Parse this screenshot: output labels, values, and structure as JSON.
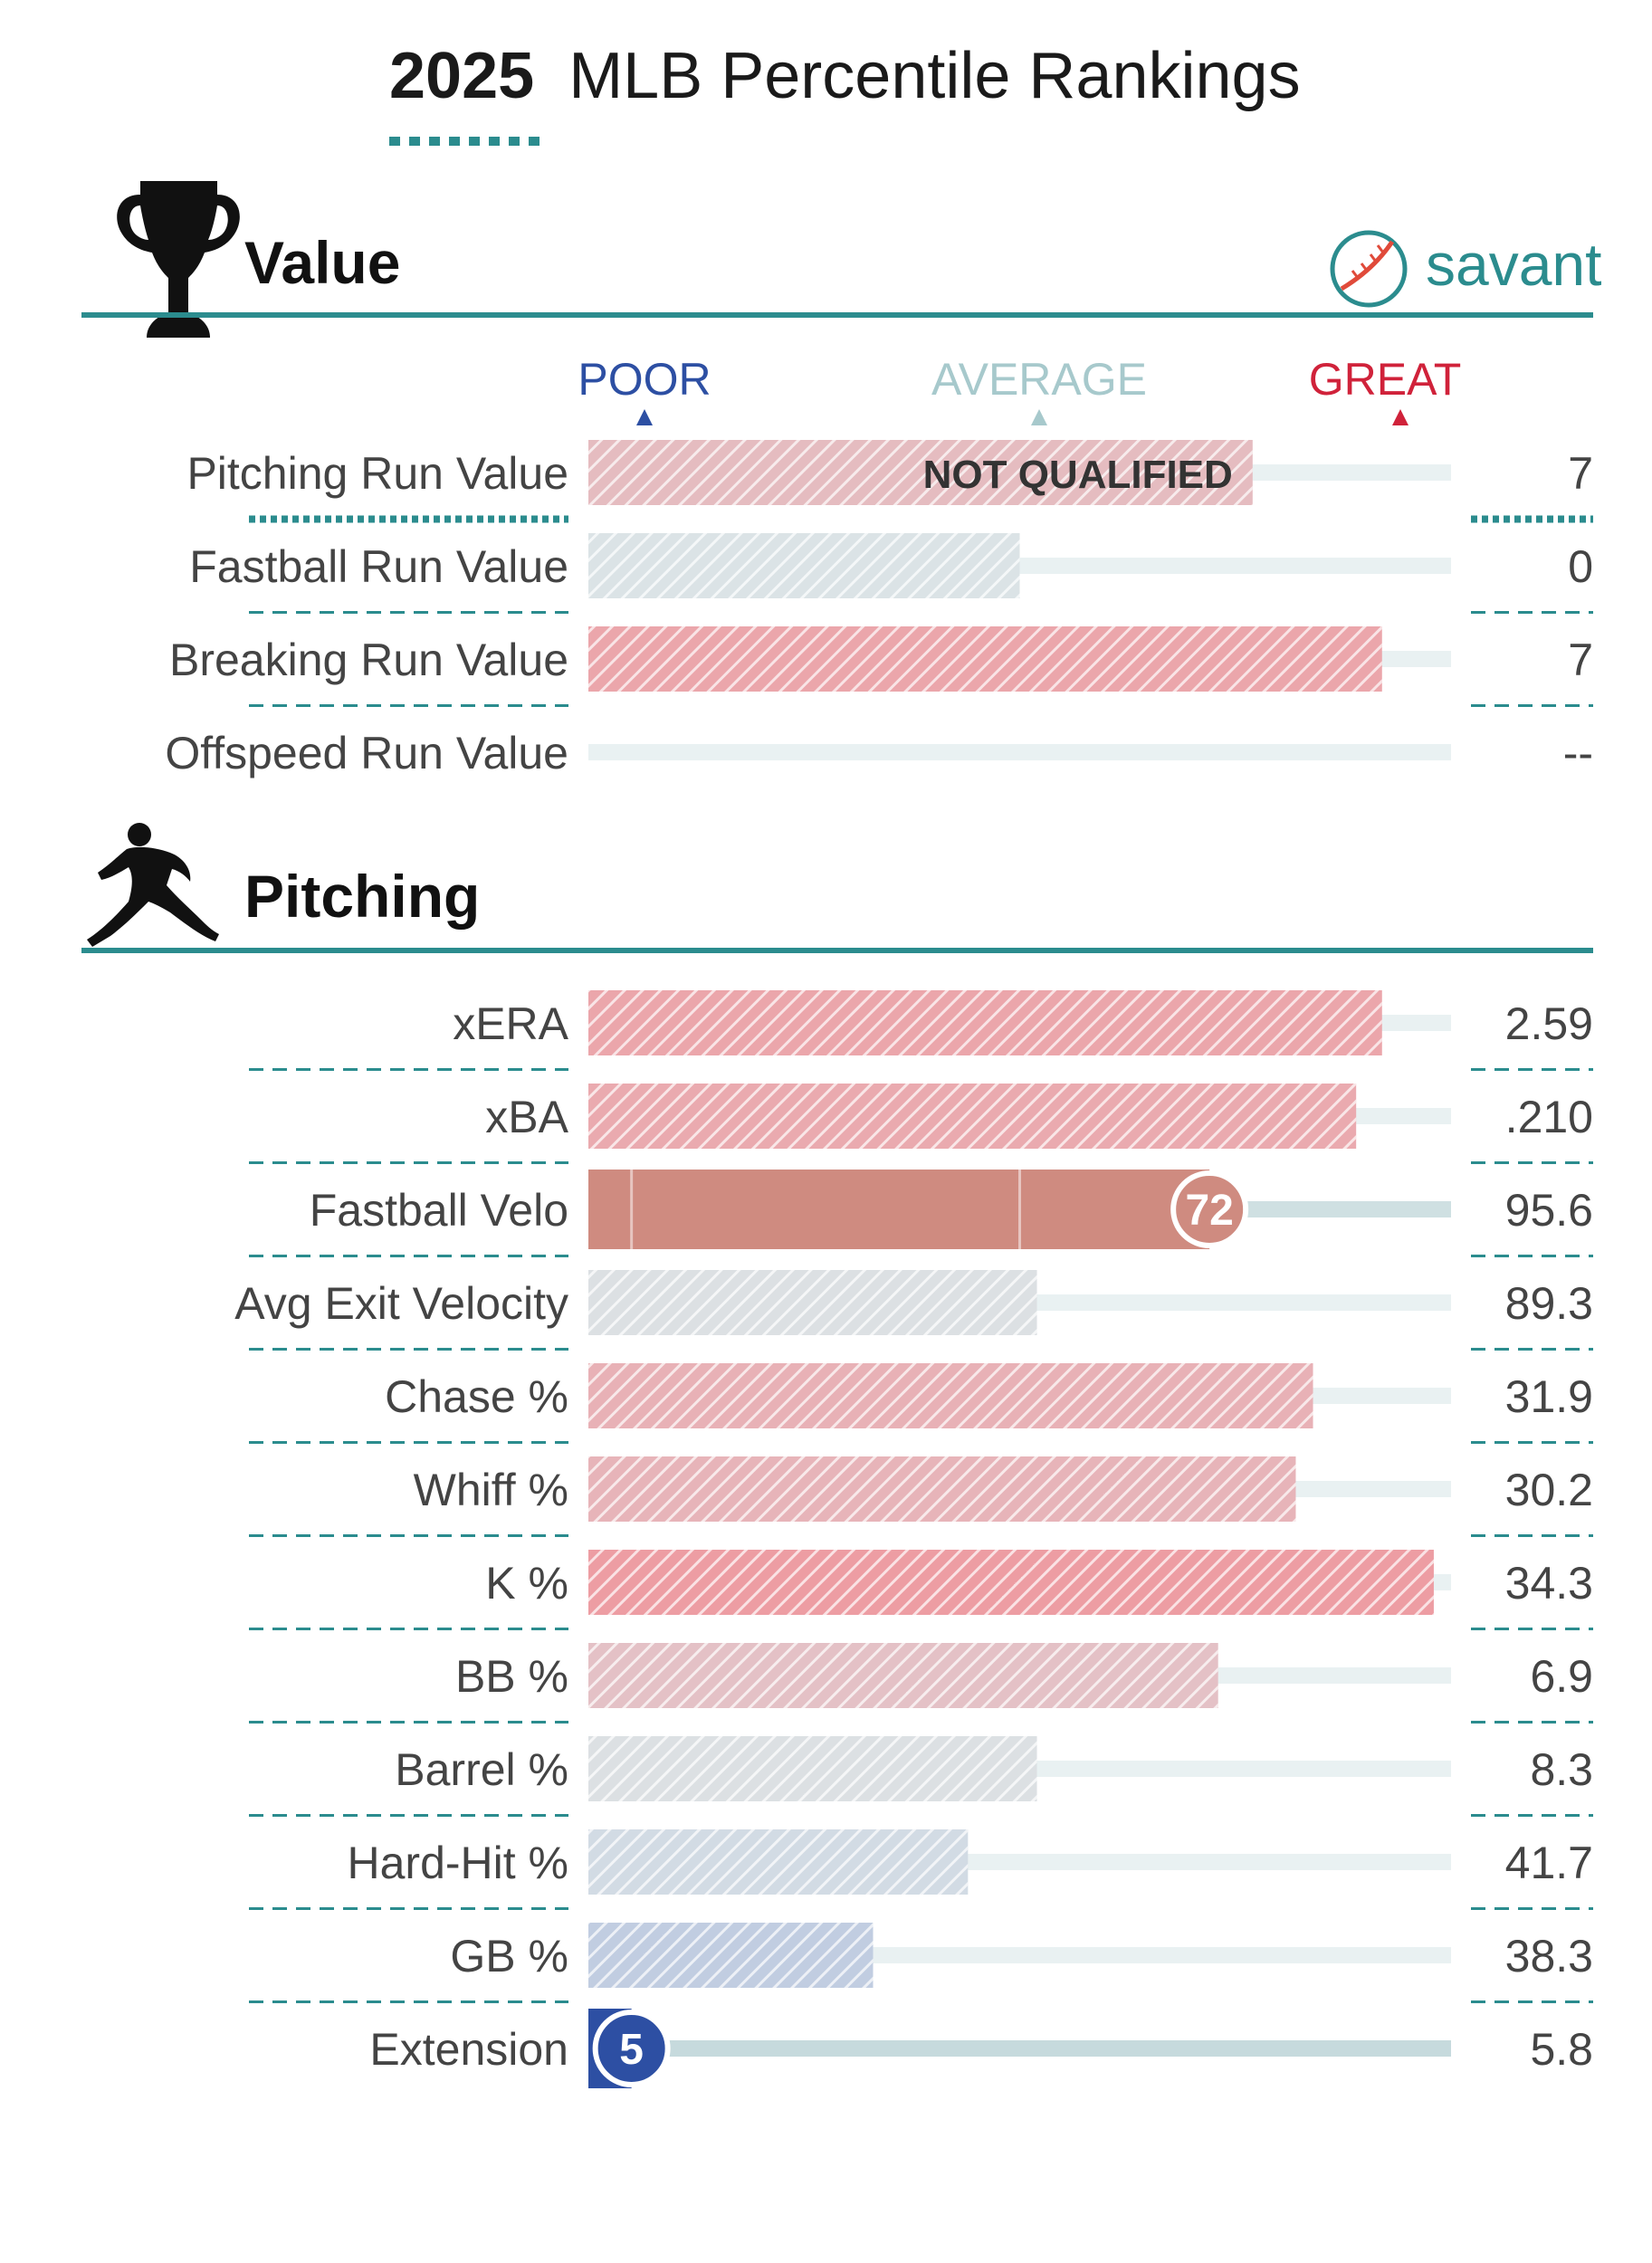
{
  "title": {
    "year": "2025",
    "rest": "MLB Percentile Rankings"
  },
  "brand": {
    "label": "savant",
    "icon": "baseball-icon"
  },
  "colors": {
    "teal": "#2b8c8e",
    "poor": "#2d4fa3",
    "average": "#a7c9cc",
    "great": "#d0223a",
    "track": "#e9f1f2",
    "bubble_fill": "#cf8b80"
  },
  "scale": {
    "poor": "POOR",
    "average": "AVERAGE",
    "great": "GREAT"
  },
  "sections": [
    {
      "name": "Value",
      "icon": "trophy-icon"
    },
    {
      "name": "Pitching",
      "icon": "pitcher-icon"
    }
  ],
  "chart_data": {
    "type": "bar",
    "xlim": [
      0,
      100
    ],
    "groups": [
      {
        "section": "Value",
        "rows": [
          {
            "label": "Pitching Run Value",
            "percentile": 77,
            "value": "7",
            "note": "NOT QUALIFIED",
            "style": "hatched"
          },
          {
            "label": "Fastball Run Value",
            "percentile": 50,
            "value": "0",
            "style": "hatched"
          },
          {
            "label": "Breaking Run Value",
            "percentile": 92,
            "value": "7",
            "style": "hatched"
          },
          {
            "label": "Offspeed Run Value",
            "percentile": null,
            "value": "--",
            "style": "empty"
          }
        ]
      },
      {
        "section": "Pitching",
        "rows": [
          {
            "label": "xERA",
            "percentile": 92,
            "value": "2.59",
            "style": "hatched"
          },
          {
            "label": "xBA",
            "percentile": 89,
            "value": ".210",
            "style": "hatched"
          },
          {
            "label": "Fastball Velo",
            "percentile": 72,
            "value": "95.6",
            "badge": "72",
            "style": "solid"
          },
          {
            "label": "Avg Exit Velocity",
            "percentile": 52,
            "value": "89.3",
            "style": "hatched"
          },
          {
            "label": "Chase %",
            "percentile": 84,
            "value": "31.9",
            "style": "hatched"
          },
          {
            "label": "Whiff %",
            "percentile": 82,
            "value": "30.2",
            "style": "hatched"
          },
          {
            "label": "K %",
            "percentile": 98,
            "value": "34.3",
            "style": "hatched"
          },
          {
            "label": "BB %",
            "percentile": 73,
            "value": "6.9",
            "style": "hatched"
          },
          {
            "label": "Barrel %",
            "percentile": 52,
            "value": "8.3",
            "style": "hatched"
          },
          {
            "label": "Hard-Hit %",
            "percentile": 44,
            "value": "41.7",
            "style": "hatched"
          },
          {
            "label": "GB %",
            "percentile": 33,
            "value": "38.3",
            "style": "hatched"
          },
          {
            "label": "Extension",
            "percentile": 5,
            "value": "5.8",
            "badge": "5",
            "style": "solid"
          }
        ]
      }
    ]
  }
}
